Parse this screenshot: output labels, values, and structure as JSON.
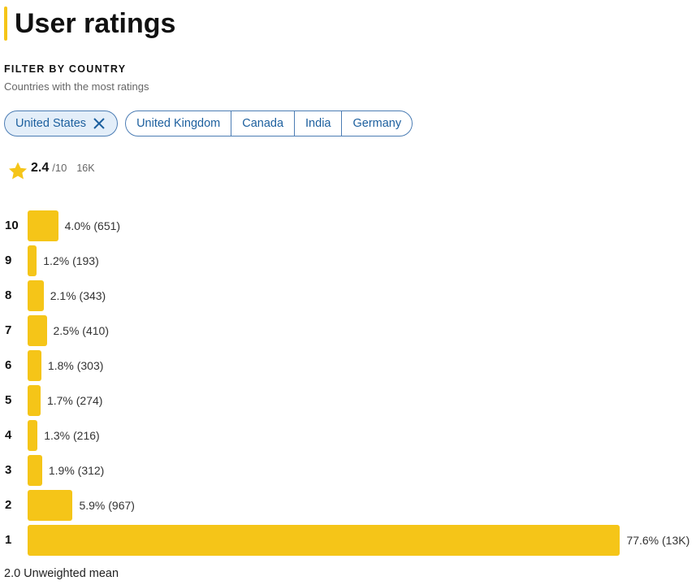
{
  "header": {
    "title": "User ratings"
  },
  "filter": {
    "heading": "FILTER BY COUNTRY",
    "subheading": "Countries with the most ratings",
    "countries": [
      "United States",
      "United Kingdom",
      "Canada",
      "India",
      "Germany"
    ],
    "selected": 0
  },
  "summary": {
    "rating": "2.4",
    "scale": "/10",
    "count": "16K"
  },
  "histogram": {
    "type": "bar",
    "orientation": "horizontal",
    "color": "#f5c518",
    "categories": [
      "10",
      "9",
      "8",
      "7",
      "6",
      "5",
      "4",
      "3",
      "2",
      "1"
    ],
    "values": [
      4.0,
      1.2,
      2.1,
      2.5,
      1.8,
      1.7,
      1.3,
      1.9,
      5.9,
      77.6
    ],
    "value_labels": [
      "4.0% (651)",
      "1.2% (193)",
      "2.1% (343)",
      "2.5% (410)",
      "1.8% (303)",
      "1.7% (274)",
      "1.3% (216)",
      "1.9% (312)",
      "5.9% (967)",
      "77.6% (13K)"
    ]
  },
  "footer": {
    "mean": "2.0 Unweighted mean"
  }
}
